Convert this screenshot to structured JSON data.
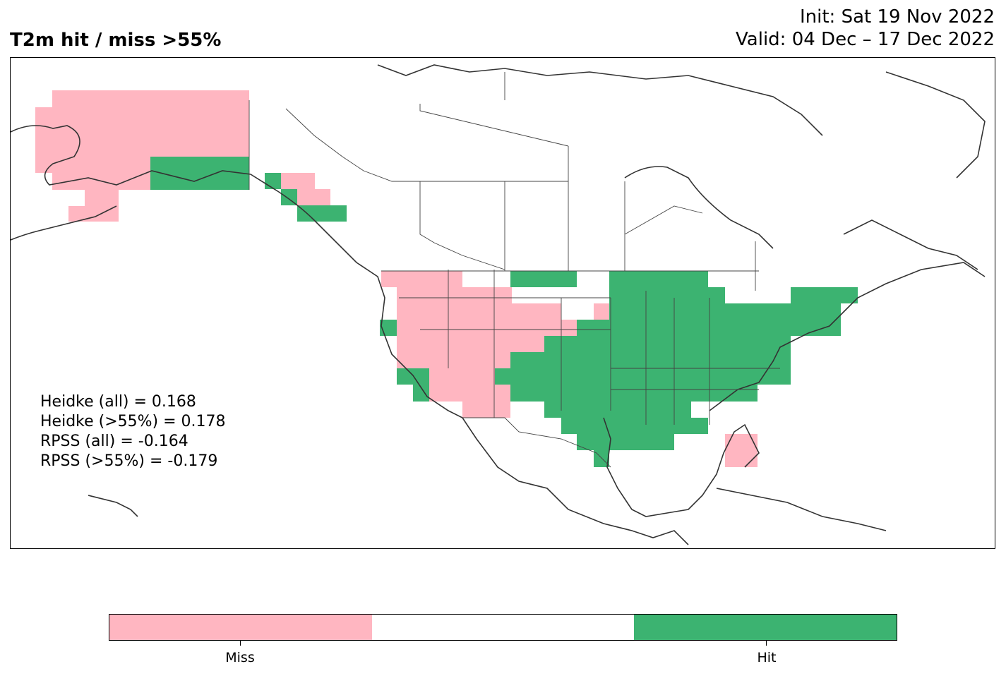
{
  "title": "T2m hit / miss  >55%",
  "init": "Init: Sat 19 Nov 2022",
  "valid": "Valid: 04 Dec – 17 Dec 2022",
  "stats": [
    "Heidke (all) = 0.168",
    "Heidke (>55%) = 0.178",
    "RPSS (all) = -0.164",
    "RPSS (>55%) = -0.179"
  ],
  "legend": {
    "miss_label": "Miss",
    "hit_label": "Hit",
    "miss_color": "#ffb6c1",
    "neutral_color": "#ffffff",
    "hit_color": "#3cb371"
  }
}
